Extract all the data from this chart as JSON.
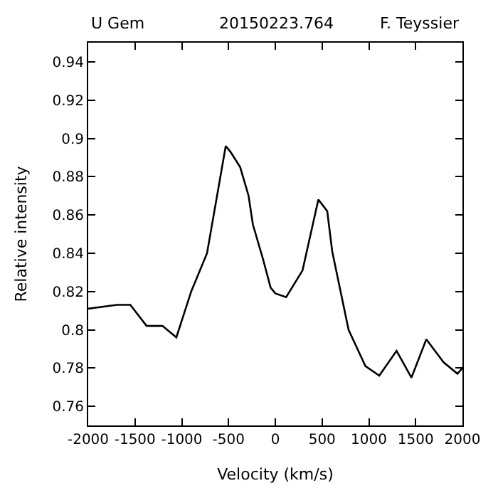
{
  "chart_data": {
    "type": "line",
    "annotations": [
      "U Gem",
      "20150223.764",
      "F. Teyssier"
    ],
    "xlabel": "Velocity (km/s)",
    "ylabel": "Relative intensity",
    "x": [
      -2000,
      -1693,
      -1550,
      -1376,
      -1206,
      -1058,
      -899,
      -730,
      -530,
      -480,
      -376,
      -286,
      -240,
      -132,
      -50,
      0,
      116,
      291,
      460,
      555,
      608,
      783,
      963,
      1111,
      1296,
      1455,
      1614,
      1799,
      1947,
      2000
    ],
    "series": [
      {
        "color": "#000000",
        "values": [
          0.811,
          0.813,
          0.813,
          0.802,
          0.802,
          0.796,
          0.82,
          0.84,
          0.896,
          0.893,
          0.885,
          0.87,
          0.855,
          0.837,
          0.822,
          0.819,
          0.817,
          0.831,
          0.868,
          0.862,
          0.841,
          0.8,
          0.781,
          0.776,
          0.789,
          0.775,
          0.795,
          0.783,
          0.777,
          0.78
        ]
      }
    ],
    "xlim": [
      -2000,
      2000
    ],
    "ylim": [
      0.75,
      0.95
    ],
    "xticks": [
      -2000,
      -1500,
      -1000,
      -500,
      0,
      500,
      1000,
      1500,
      2000
    ],
    "yticks": [
      0.76,
      0.78,
      0.8,
      0.82,
      0.84,
      0.86,
      0.88,
      0.9,
      0.92,
      0.94
    ],
    "marker": "none",
    "line_style": "solid"
  }
}
